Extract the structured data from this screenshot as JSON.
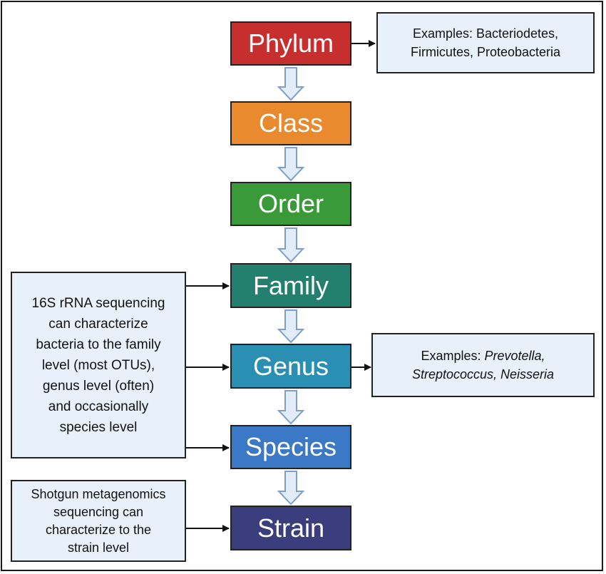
{
  "ranks": [
    {
      "label": "Phylum",
      "color": "#c62f2d"
    },
    {
      "label": "Class",
      "color": "#e88a2d"
    },
    {
      "label": "Order",
      "color": "#3a9a3a"
    },
    {
      "label": "Family",
      "color": "#23806f"
    },
    {
      "label": "Genus",
      "color": "#2a8fb3"
    },
    {
      "label": "Species",
      "color": "#3b78c6"
    },
    {
      "label": "Strain",
      "color": "#3b3e7c"
    }
  ],
  "phylum_examples": {
    "prefix": "Examples: Bacteriodetes,",
    "line2": "Firmicutes, Proteobacteria"
  },
  "genus_examples": {
    "prefix": "Examples:",
    "italic1": "Prevotella,",
    "italic2": "Streptococcus, Neisseria"
  },
  "sixteen_s_note": {
    "lines": [
      "16S rRNA sequencing",
      "can characterize",
      "bacteria to the family",
      "level (most OTUs),",
      "genus level (often)",
      "and occasionally",
      "species level"
    ]
  },
  "shotgun_note": {
    "lines": [
      "Shotgun metagenomics",
      "sequencing can",
      "characterize to the",
      "strain level"
    ]
  },
  "colors": {
    "note_fill": "#e8f0fa",
    "down_arrow_fill": "#e3edf9",
    "down_arrow_stroke": "#7d9fc9",
    "connector": "#111111"
  }
}
